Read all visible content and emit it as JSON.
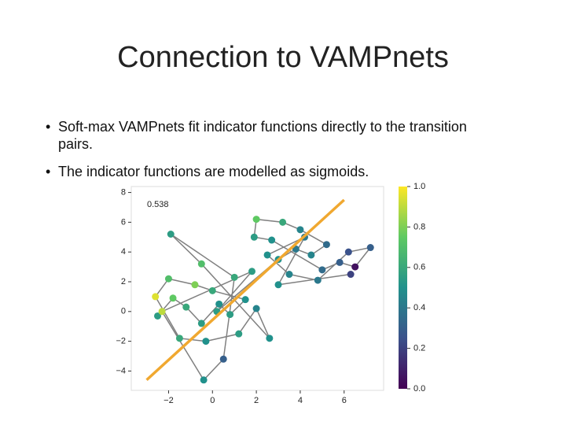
{
  "slide": {
    "title": "Connection to VAMPnets",
    "bullets": [
      "Soft-max VAMPnets fit indicator functions directly to the transition pairs.",
      "The indicator functions are modelled as sigmoids."
    ]
  },
  "chart_data": {
    "type": "scatter",
    "annotation": "0.538",
    "x": [
      -2.5,
      -1.8,
      -1.2,
      -0.5,
      0.3,
      0.8,
      1.5,
      0.0,
      -0.8,
      -2.0,
      -2.6,
      -1.5,
      -0.3,
      1.2,
      2.0,
      2.6,
      -0.5,
      -1.9,
      1.0,
      0.5,
      -0.4,
      -2.3,
      1.8,
      0.2,
      3.0,
      3.8,
      4.5,
      5.2,
      4.0,
      3.2,
      2.0,
      1.9,
      2.7,
      5.0,
      5.8,
      6.5,
      7.2,
      6.2,
      4.8,
      3.5,
      2.5,
      4.2,
      3.0,
      6.3
    ],
    "y": [
      -0.3,
      0.9,
      0.3,
      -0.8,
      0.5,
      -0.2,
      0.8,
      1.4,
      1.8,
      2.2,
      1.0,
      -1.8,
      -2.0,
      -1.5,
      0.2,
      -1.8,
      3.2,
      5.2,
      2.3,
      -3.2,
      -4.6,
      0.0,
      2.7,
      0.0,
      3.5,
      4.2,
      3.8,
      4.5,
      5.5,
      6.0,
      6.2,
      5.0,
      4.8,
      2.8,
      3.3,
      3.0,
      4.3,
      4.0,
      2.1,
      2.5,
      3.8,
      5.0,
      1.8,
      2.5
    ],
    "c": [
      0.55,
      0.75,
      0.6,
      0.55,
      0.5,
      0.55,
      0.5,
      0.6,
      0.8,
      0.7,
      0.95,
      0.6,
      0.5,
      0.55,
      0.45,
      0.5,
      0.7,
      0.55,
      0.6,
      0.3,
      0.5,
      0.9,
      0.55,
      0.55,
      0.5,
      0.4,
      0.45,
      0.35,
      0.45,
      0.6,
      0.75,
      0.55,
      0.5,
      0.35,
      0.3,
      0.05,
      0.3,
      0.25,
      0.4,
      0.45,
      0.5,
      0.4,
      0.5,
      0.2
    ],
    "fit_line": {
      "x": [
        -3,
        6
      ],
      "y": [
        -4.6,
        7.5
      ],
      "color": "#f0a830"
    },
    "xlim": [
      -3.7,
      7.8
    ],
    "ylim": [
      -5.3,
      8.4
    ],
    "xticks": [
      {
        "value": -2,
        "label": "−2"
      },
      0,
      2,
      4,
      6
    ],
    "yticks": [
      {
        "value": -4,
        "label": "−4"
      },
      {
        "value": -2,
        "label": "−2"
      },
      0,
      2,
      4,
      6,
      8
    ],
    "clim": [
      0,
      1
    ],
    "cticks": [
      {
        "value": 0,
        "label": "0.0"
      },
      0.2,
      0.4,
      0.6,
      0.8,
      {
        "value": 1,
        "label": "1.0"
      }
    ]
  }
}
